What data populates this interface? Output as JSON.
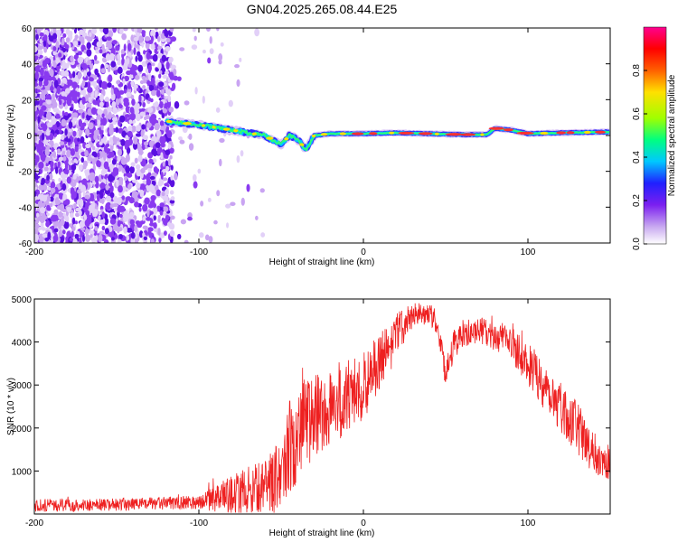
{
  "title": "GN04.2025.265.08.44.E25",
  "chart_data": [
    {
      "type": "heatmap",
      "name": "spectrogram",
      "xlabel": "Height of straight line (km)",
      "ylabel": "Frequency (Hz)",
      "xlim": [
        -200,
        150
      ],
      "ylim": [
        -60,
        60
      ],
      "x_ticks": [
        -200,
        -100,
        0,
        100
      ],
      "y_ticks": [
        -60,
        -40,
        -20,
        0,
        20,
        40,
        60
      ],
      "x_tick_labels": [
        "-200",
        "-100",
        "0",
        "100"
      ],
      "y_tick_labels": [
        "-60",
        "-40",
        "-20",
        "0",
        "20",
        "40",
        "60"
      ],
      "description_regions": {
        "noise_scatter_x": [
          -200,
          -60
        ],
        "signal_track": {
          "x": [
            -120,
            -100,
            -80,
            -60,
            -50,
            -45,
            -40,
            -35,
            -30,
            -20,
            0,
            20,
            40,
            60,
            75,
            80,
            90,
            100,
            120,
            150
          ],
          "freq": [
            8,
            6,
            3,
            0,
            -5,
            0,
            -2,
            -8,
            0,
            1,
            1,
            1.5,
            1,
            0.5,
            0.5,
            4,
            3,
            1,
            1.5,
            2
          ]
        }
      },
      "colorbar": {
        "label": "Normalized spectral amplitude",
        "range": [
          0,
          1
        ],
        "ticks": [
          0.0,
          0.2,
          0.4,
          0.6,
          0.8
        ],
        "tick_labels": [
          "0.0",
          "0.2",
          "0.4",
          "0.6",
          "0.8"
        ],
        "colors": [
          "#ffffff",
          "#c8a8f0",
          "#7b1ff0",
          "#2020ff",
          "#00c8ff",
          "#00ff80",
          "#a0ff00",
          "#ffe000",
          "#ff6000",
          "#ff0000",
          "#ff0090"
        ]
      }
    },
    {
      "type": "line",
      "name": "snr",
      "xlabel": "Height of straight line (km)",
      "ylabel": "SNR (10 * v/v)",
      "xlim": [
        -200,
        150
      ],
      "ylim": [
        0,
        5000
      ],
      "x_ticks": [
        -200,
        -100,
        0,
        100
      ],
      "y_ticks": [
        1000,
        2000,
        3000,
        4000,
        5000
      ],
      "x_tick_labels": [
        "-200",
        "-100",
        "0",
        "100"
      ],
      "y_tick_labels": [
        "1000",
        "2000",
        "3000",
        "4000",
        "5000"
      ],
      "line_color": "#ee2020",
      "envelope": {
        "x": [
          -200,
          -160,
          -120,
          -100,
          -90,
          -80,
          -70,
          -60,
          -50,
          -45,
          -40,
          -35,
          -30,
          -20,
          -10,
          0,
          10,
          20,
          30,
          40,
          45,
          50,
          55,
          60,
          70,
          80,
          90,
          100,
          110,
          120,
          130,
          140,
          150
        ],
        "mean": [
          200,
          210,
          250,
          280,
          350,
          450,
          550,
          650,
          900,
          1500,
          2000,
          2300,
          2200,
          2500,
          2700,
          3000,
          3500,
          4200,
          4600,
          4700,
          4400,
          3200,
          4000,
          4100,
          4300,
          4100,
          4000,
          3500,
          3000,
          2500,
          2000,
          1400,
          1200
        ],
        "spread": [
          150,
          150,
          150,
          160,
          300,
          450,
          550,
          600,
          900,
          1200,
          1300,
          1200,
          1000,
          1000,
          900,
          800,
          700,
          500,
          300,
          250,
          300,
          300,
          400,
          300,
          300,
          350,
          450,
          500,
          600,
          600,
          600,
          500,
          400
        ]
      }
    }
  ]
}
